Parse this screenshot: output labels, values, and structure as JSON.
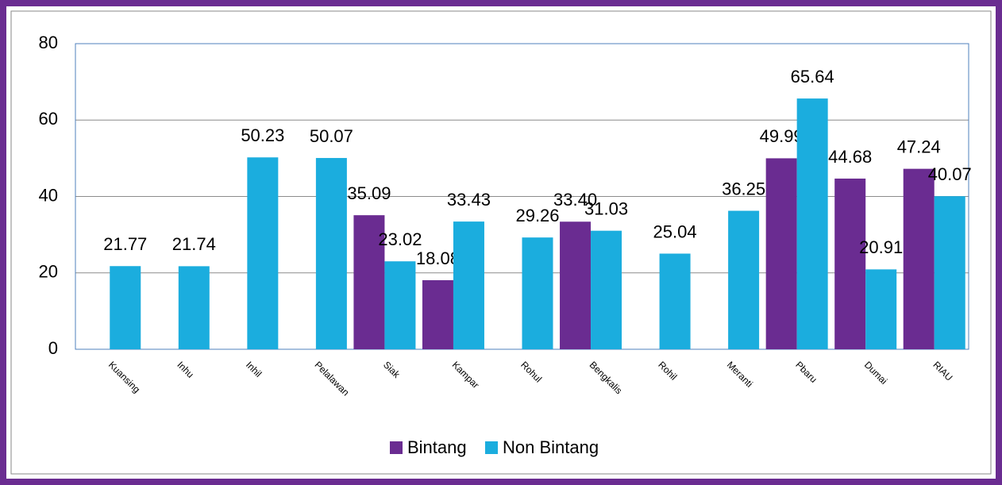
{
  "chart_data": {
    "type": "bar",
    "categories": [
      "Kuansing",
      "Inhu",
      "Inhil",
      "Pelalawan",
      "Siak",
      "Kampar",
      "Rohul",
      "Bengkalis",
      "Rohil",
      "Meranti",
      "Pbaru",
      "Dumai",
      "RIAU"
    ],
    "series": [
      {
        "name": "Bintang",
        "color": "#6a2c91",
        "values": [
          null,
          null,
          null,
          null,
          35.09,
          18.08,
          null,
          33.4,
          null,
          null,
          49.99,
          44.68,
          47.24
        ],
        "value_labels": [
          null,
          null,
          null,
          null,
          "35.09",
          "18.08",
          null,
          "33.40",
          null,
          null,
          "49.99",
          "44.68",
          "47.24"
        ]
      },
      {
        "name": "Non Bintang",
        "color": "#1badde",
        "values": [
          21.77,
          21.74,
          50.23,
          50.07,
          23.02,
          33.43,
          29.26,
          31.03,
          25.04,
          36.25,
          65.64,
          20.91,
          40.07
        ],
        "value_labels": [
          "21.77",
          "21.74",
          "50.23",
          "50.07",
          "23.02",
          "33.43",
          "29.26",
          "31.03",
          "25.04",
          "36.25",
          "65.64",
          "20.91",
          "40.07"
        ]
      }
    ],
    "ylim": [
      0,
      80
    ],
    "yticks": [
      0,
      20,
      40,
      60,
      80
    ],
    "grid": true,
    "legend": "bottom"
  }
}
